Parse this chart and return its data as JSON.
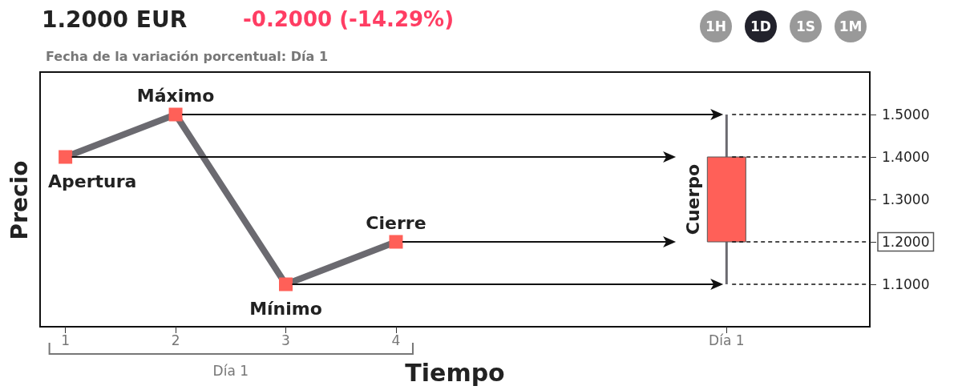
{
  "chart_data": {
    "type": "line",
    "title": "1.2000 EUR",
    "subtitle": "-0.2000 (-14.29%)",
    "xlabel": "Tiempo",
    "ylabel": "Precio",
    "marker": "square",
    "xlim": [
      0.77,
      8.3
    ],
    "xticks": [
      1,
      2,
      3,
      4,
      {
        "value": 7,
        "label": "Día 1"
      }
    ],
    "ylim": [
      1.0,
      1.6
    ],
    "yticks": [
      {
        "value": 1.1,
        "label": "1.1000"
      },
      {
        "value": 1.2,
        "label": "1.2000"
      },
      {
        "value": 1.3,
        "label": "1.3000"
      },
      {
        "value": 1.4,
        "label": "1.4000"
      },
      {
        "value": 1.5,
        "label": "1.5000"
      }
    ],
    "annotations": [
      "Fecha de la variación porcentual: Día 1",
      "1H",
      "1D",
      "1S",
      "1M",
      "Día 1",
      {
        "text": "Apertura",
        "x": 1,
        "y": 1.4
      },
      {
        "text": "Máximo",
        "x": 2,
        "y": 1.5
      },
      {
        "text": "Mínimo",
        "x": 3,
        "y": 1.1
      },
      {
        "text": "Cierre",
        "x": 4,
        "y": 1.2
      },
      {
        "text": "Cuerpo",
        "x": 7,
        "y": 1.3
      }
    ],
    "series": [
      {
        "x": [
          1,
          2,
          3,
          4
        ],
        "values": [
          1.4,
          1.5,
          1.1,
          1.2
        ],
        "color": "#6b6a70",
        "colors": [
          "#ff6058",
          "#ff6058",
          "#ff6058",
          "#ff6058"
        ]
      },
      {
        "type": "candlestick",
        "x": [
          7
        ],
        "ohlc": [
          [
            1.4,
            1.5,
            1.1,
            1.2
          ]
        ],
        "color": "#ff6058"
      }
    ]
  }
}
